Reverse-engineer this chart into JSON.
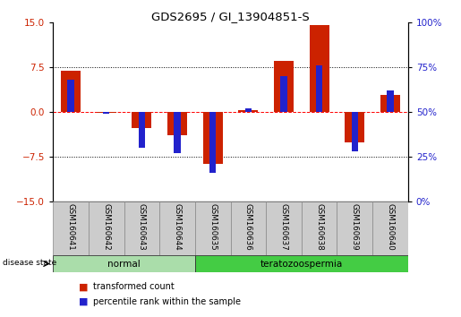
{
  "title": "GDS2695 / GI_13904851-S",
  "samples": [
    "GSM160641",
    "GSM160642",
    "GSM160643",
    "GSM160644",
    "GSM160635",
    "GSM160636",
    "GSM160637",
    "GSM160638",
    "GSM160639",
    "GSM160640"
  ],
  "transformed_count": [
    6.8,
    -0.2,
    -2.8,
    -4.0,
    -8.8,
    0.3,
    8.5,
    14.5,
    -5.2,
    2.8
  ],
  "percentile_rank_raw": [
    68,
    49,
    30,
    27,
    16,
    52,
    70,
    76,
    28,
    62
  ],
  "ylim_left": [
    -15,
    15
  ],
  "yticks_left": [
    -15,
    -7.5,
    0,
    7.5,
    15
  ],
  "yticks_right": [
    0,
    25,
    50,
    75,
    100
  ],
  "red_bar_width": 0.55,
  "blue_bar_width": 0.18,
  "red_color": "#CC2200",
  "blue_color": "#2222CC",
  "normal_color": "#AADDAA",
  "tera_color": "#44CC44",
  "label_bg": "#CCCCCC",
  "plot_bg": "white",
  "normal_label": "normal",
  "tera_label": "teratozoospermia",
  "disease_state_label": "disease state",
  "legend_red": "transformed count",
  "legend_blue": "percentile rank within the sample"
}
